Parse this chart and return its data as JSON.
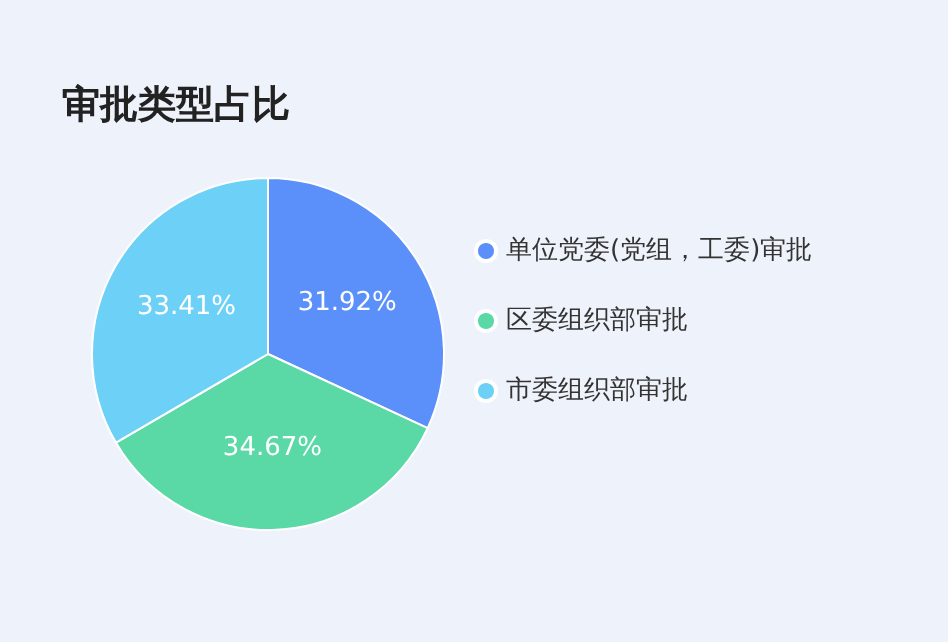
{
  "chart_data": {
    "type": "pie",
    "title": "审批类型占比",
    "categories": [
      "单位党委(党组，工委)审批",
      "区委组织部审批",
      "市委组织部审批"
    ],
    "values": [
      31.92,
      34.67,
      33.41
    ],
    "value_labels": [
      "31.92%",
      "34.67%",
      "33.41%"
    ],
    "colors": [
      "#5b8ff9",
      "#5ad8a6",
      "#6dd0f7"
    ],
    "legend": "right"
  }
}
